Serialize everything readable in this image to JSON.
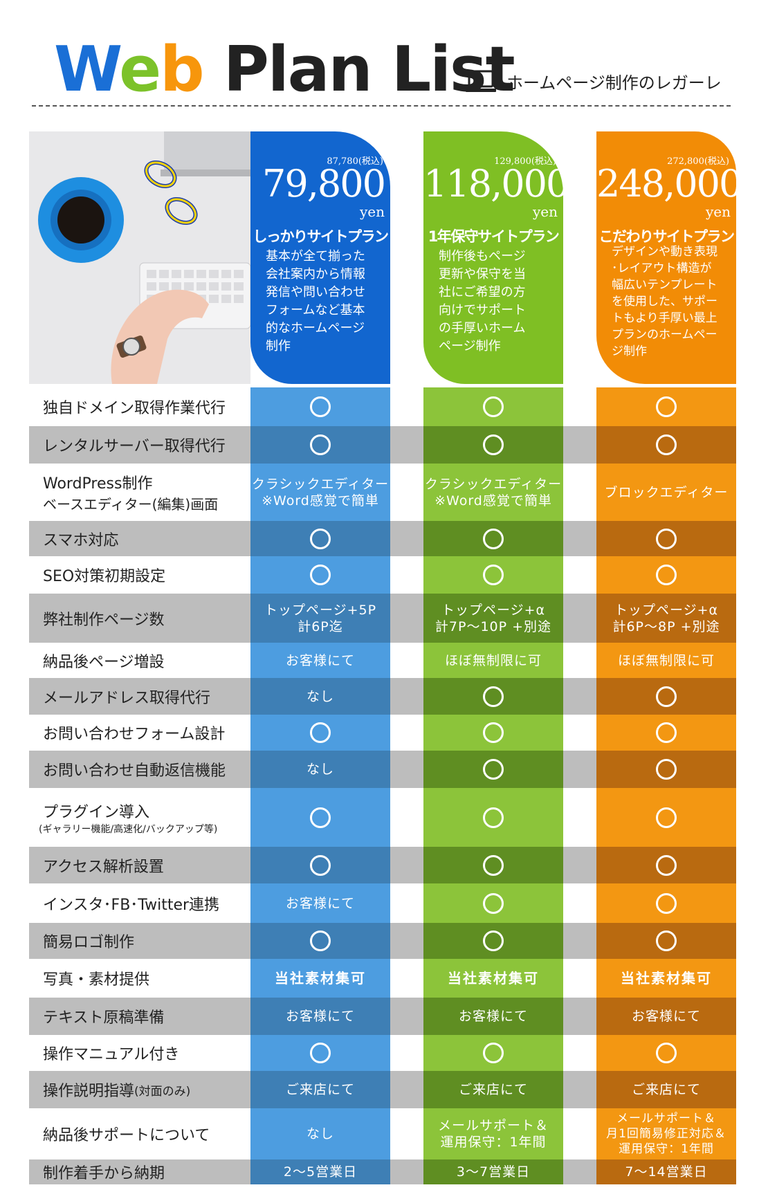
{
  "header": {
    "title_parts": [
      {
        "text": "W",
        "color": "#1a6fd6"
      },
      {
        "text": "e",
        "color": "#7cc22a"
      },
      {
        "text": "b",
        "color": "#f7960c"
      },
      {
        "text": " Plan List",
        "color": "#222222"
      }
    ],
    "brand": "ホームページ制作のレガーレ",
    "brand_icon": "laptop-icon"
  },
  "plans": [
    {
      "tax": "87,780(税込)",
      "price": "79,800",
      "unit": "yen",
      "name": "しっかりサイトプラン",
      "desc": [
        "基本が全て揃った",
        "会社案内から情報",
        "発信や問い合わせ",
        "フォームなど基本",
        "的なホームページ",
        "制作"
      ],
      "head_color": "#1266cf",
      "col_light": "#4d9de0",
      "col_dark": "#3e7fb5"
    },
    {
      "tax": "129,800(税込)",
      "price": "118,000",
      "unit": "yen",
      "name": "1年保守サイトプラン",
      "desc": [
        "制作後もページ",
        "更新や保守を当",
        "社にご希望の方",
        "向けでサポート",
        "の手厚いホーム",
        "ページ制作"
      ],
      "head_color": "#7fbf24",
      "col_light": "#8cc43a",
      "col_dark": "#5f8e22"
    },
    {
      "tax": "272,800(税込)",
      "price": "248,000",
      "unit": "yen",
      "name": "こだわりサイトプラン",
      "desc": [
        "デザインや動き表現",
        "･レイアウト構造が",
        "幅広いテンプレート",
        "を使用した、サポー",
        "トもより手厚い最上",
        "プランのホームペー",
        "ジ制作"
      ],
      "head_color": "#f28c06",
      "col_light": "#f39712",
      "col_dark": "#b96a10"
    }
  ],
  "rows": [
    {
      "label": [
        "独自ドメイン取得作業代行"
      ],
      "cells": [
        "○",
        "○",
        "○"
      ]
    },
    {
      "label": [
        "レンタルサーバー取得代行"
      ],
      "cells": [
        "○",
        "○",
        "○"
      ]
    },
    {
      "label": [
        "WordPress制作",
        "ベースエディター(編集)画面"
      ],
      "cells": [
        [
          "クラシックエディター",
          "※Word感覚で簡単"
        ],
        [
          "クラシックエディター",
          "※Word感覚で簡単"
        ],
        [
          "ブロックエディター"
        ]
      ]
    },
    {
      "label": [
        "スマホ対応"
      ],
      "cells": [
        "○",
        "○",
        "○"
      ]
    },
    {
      "label": [
        "SEO対策初期設定"
      ],
      "cells": [
        "○",
        "○",
        "○"
      ]
    },
    {
      "label": [
        "弊社制作ページ数"
      ],
      "cells": [
        [
          "トップページ+5P",
          "計6P迄"
        ],
        [
          "トップページ+α",
          "計7P～10P +別途"
        ],
        [
          "トップページ+α",
          "計6P～8P +別途"
        ]
      ]
    },
    {
      "label": [
        "納品後ページ増設"
      ],
      "cells": [
        [
          "お客様にて"
        ],
        [
          "ほぼ無制限に可"
        ],
        [
          "ほぼ無制限に可"
        ]
      ]
    },
    {
      "label": [
        "メールアドレス取得代行"
      ],
      "cells": [
        [
          "なし"
        ],
        "○",
        "○"
      ]
    },
    {
      "label": [
        "お問い合わせフォーム設計"
      ],
      "cells": [
        "○",
        "○",
        "○"
      ]
    },
    {
      "label": [
        "お問い合わせ自動返信機能"
      ],
      "cells": [
        [
          "なし"
        ],
        "○",
        "○"
      ]
    },
    {
      "label": [
        "プラグイン導入",
        "(ギャラリー機能/高速化/バックアップ等)"
      ],
      "cells": [
        "○",
        "○",
        "○"
      ]
    },
    {
      "label": [
        "アクセス解析設置"
      ],
      "cells": [
        "○",
        "○",
        "○"
      ]
    },
    {
      "label": [
        "インスタ･FB･Twitter連携"
      ],
      "cells": [
        [
          "お客様にて"
        ],
        "○",
        "○"
      ]
    },
    {
      "label": [
        "簡易ロゴ制作"
      ],
      "cells": [
        "○",
        "○",
        "○"
      ]
    },
    {
      "label": [
        "写真・素材提供"
      ],
      "cells": [
        [
          "当社素材集可"
        ],
        [
          "当社素材集可"
        ],
        [
          "当社素材集可"
        ]
      ]
    },
    {
      "label": [
        "テキスト原稿準備"
      ],
      "cells": [
        [
          "お客様にて"
        ],
        [
          "お客様にて"
        ],
        [
          "お客様にて"
        ]
      ]
    },
    {
      "label": [
        "操作マニュアル付き"
      ],
      "cells": [
        "○",
        "○",
        "○"
      ]
    },
    {
      "label": [
        "操作説明指導",
        "(対面のみ)"
      ],
      "cells": [
        [
          "ご来店にて"
        ],
        [
          "ご来店にて"
        ],
        [
          "ご来店にて"
        ]
      ]
    },
    {
      "label": [
        "納品後サポートについて"
      ],
      "cells": [
        [
          "なし"
        ],
        [
          "メールサポート＆",
          "運用保守：1年間"
        ],
        [
          "メールサポート＆",
          "月1回簡易修正対応＆",
          "運用保守：1年間"
        ]
      ]
    },
    {
      "label": [
        "制作着手から納期"
      ],
      "cells": [
        [
          "2～5営業日"
        ],
        [
          "3～7営業日"
        ],
        [
          "7～14営業日"
        ]
      ]
    }
  ]
}
